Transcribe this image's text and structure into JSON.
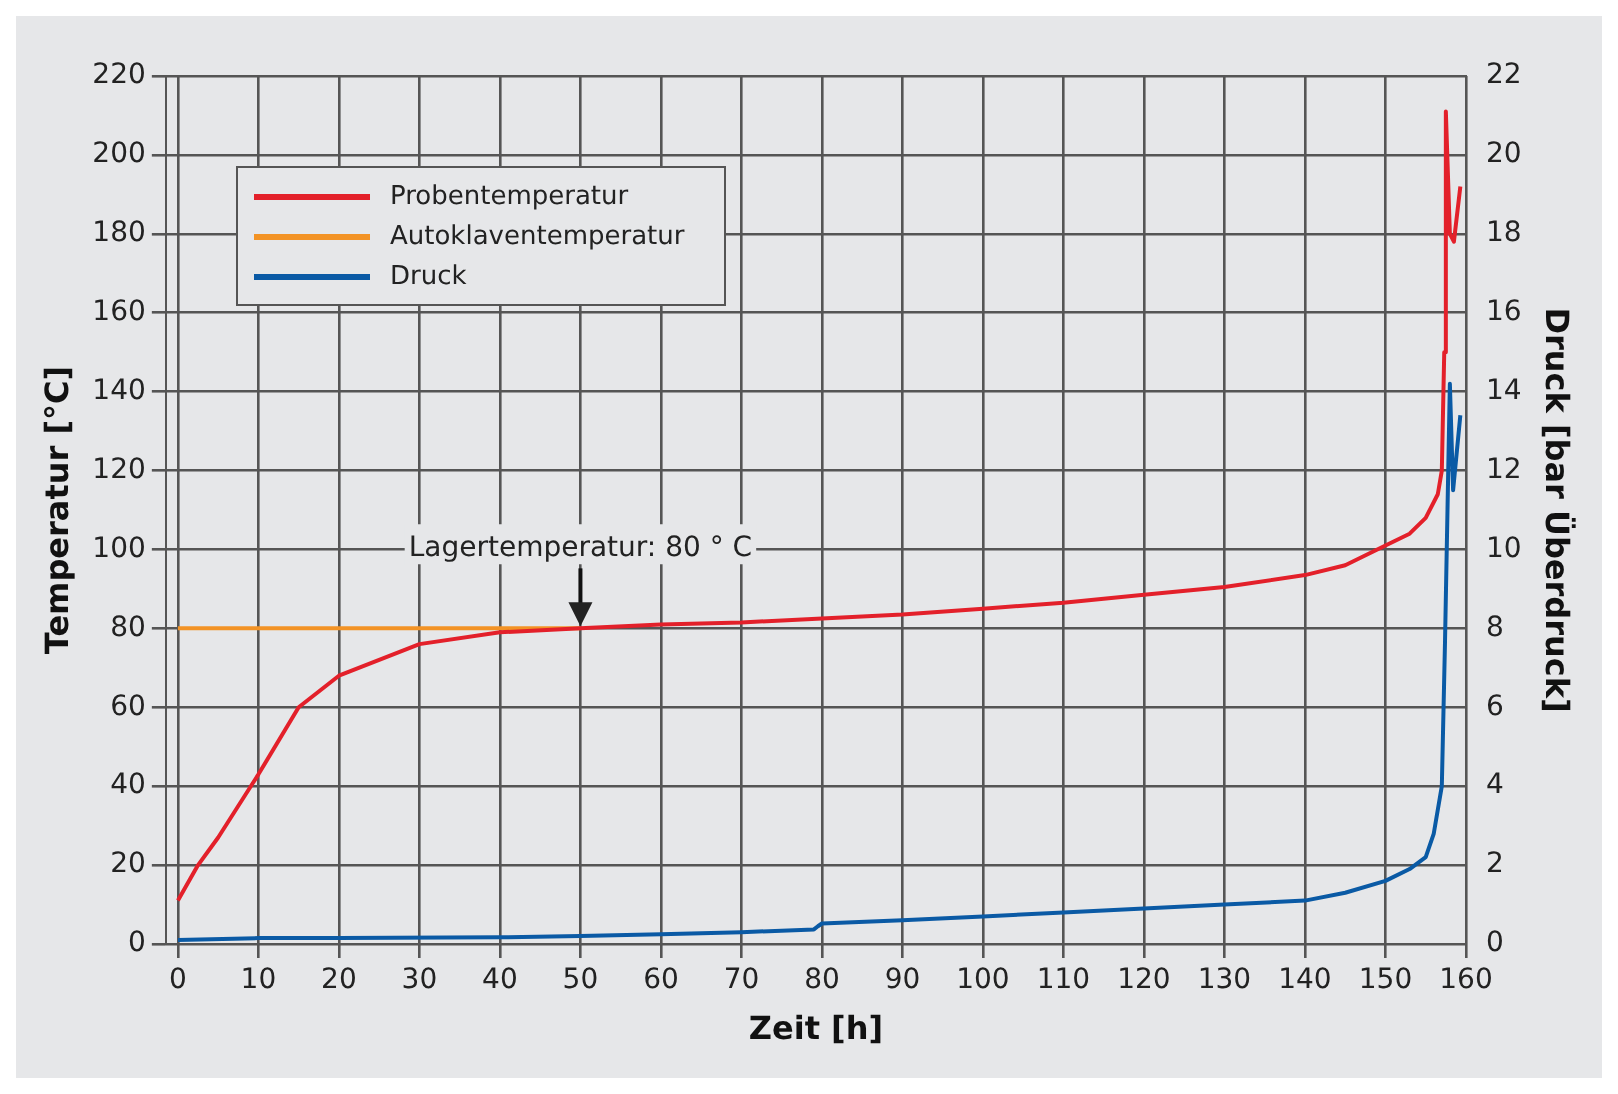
{
  "chart_data": {
    "type": "line",
    "xlabel": "Zeit [h]",
    "ylabel": "Temperatur [°C]",
    "y2label": "Druck [bar Überdruck]",
    "xlim": [
      -1.5,
      160
    ],
    "xticks": [
      0,
      10,
      20,
      30,
      40,
      50,
      60,
      70,
      80,
      90,
      100,
      110,
      120,
      130,
      140,
      150,
      160
    ],
    "ylim": [
      0,
      220
    ],
    "yticks": [
      0,
      20,
      40,
      60,
      80,
      100,
      120,
      140,
      160,
      180,
      200,
      220
    ],
    "y2lim": [
      0,
      22
    ],
    "y2ticks": [
      0,
      2,
      4,
      6,
      8,
      10,
      12,
      14,
      16,
      18,
      20,
      22
    ],
    "grid": true,
    "legend": "top left",
    "marker": "none",
    "line_style": "solid",
    "annotations": [
      {
        "text": "Lagertemperatur: 80 ° C",
        "x": 50,
        "y": 80
      }
    ],
    "series": [
      {
        "name": "Probentemperatur",
        "color": "#e3202a",
        "x": [
          0,
          2.5,
          5,
          10,
          15,
          20,
          25,
          30,
          40,
          50,
          60,
          70,
          80,
          90,
          100,
          110,
          120,
          130,
          140,
          145,
          150,
          153,
          155,
          156.5,
          157,
          157.3,
          157.5,
          158,
          158.5,
          159.3
        ],
        "values": [
          11,
          20,
          27,
          43,
          60,
          68,
          72,
          76,
          79,
          80,
          81,
          81.5,
          82.5,
          83.5,
          85,
          86.5,
          88.5,
          90.5,
          93.5,
          96,
          101,
          104,
          108,
          114,
          120,
          150,
          211,
          180,
          178,
          192
        ]
      },
      {
        "name": "Autoklaventemperatur",
        "color": "#f39325",
        "x": [
          0,
          50
        ],
        "values": [
          80,
          80
        ]
      },
      {
        "name": "Druck",
        "color": "#0a5aa5",
        "axis": "y2",
        "x": [
          0,
          10,
          20,
          40,
          50,
          60,
          70,
          79,
          79.5,
          80,
          90,
          100,
          110,
          120,
          130,
          140,
          145,
          150,
          153,
          155,
          156,
          157,
          157.4,
          158,
          158.4,
          159.3
        ],
        "values": [
          0.1,
          0.15,
          0.15,
          0.17,
          0.2,
          0.25,
          0.3,
          0.37,
          0.45,
          0.52,
          0.6,
          0.7,
          0.8,
          0.9,
          1.0,
          1.1,
          1.3,
          1.6,
          1.9,
          2.2,
          2.8,
          4.0,
          7.7,
          14.2,
          11.5,
          13.4
        ]
      }
    ]
  }
}
